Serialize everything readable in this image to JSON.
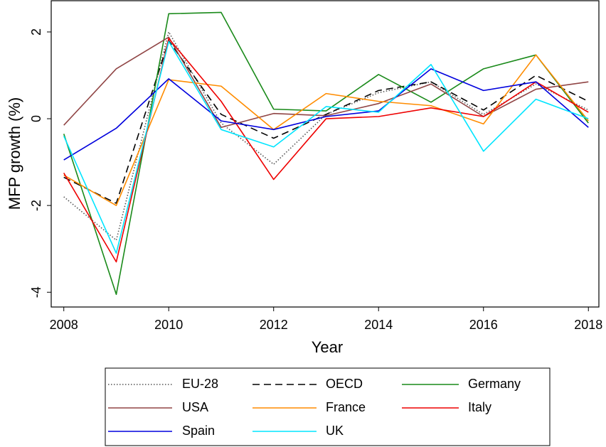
{
  "chart_data": {
    "type": "line",
    "x_label": "Year",
    "y_label": "MFP growth (%)",
    "x": [
      2008,
      2009,
      2010,
      2011,
      2012,
      2013,
      2014,
      2015,
      2016,
      2017,
      2018
    ],
    "xlim": [
      2007.76,
      2018.2
    ],
    "xticks": [
      2008,
      2010,
      2012,
      2014,
      2016,
      2018
    ],
    "ylim": [
      -4.34,
      2.72
    ],
    "yticks": [
      -4,
      -2,
      0,
      2
    ],
    "grid": false,
    "legend": "bottom",
    "series": [
      {
        "name": "EU-28",
        "color": "#555555",
        "dash": "dotted",
        "values": [
          -1.8,
          -2.8,
          2.0,
          -0.1,
          -1.05,
          0.1,
          0.6,
          0.85,
          0.1,
          0.8,
          0.2
        ]
      },
      {
        "name": "OECD",
        "color": "#000000",
        "dash": "dashed",
        "values": [
          -1.35,
          -1.95,
          1.8,
          0.1,
          -0.45,
          0.1,
          0.65,
          0.85,
          0.2,
          1.0,
          0.4
        ]
      },
      {
        "name": "Germany",
        "color": "#1a8a1a",
        "dash": "solid",
        "values": [
          -0.35,
          -4.05,
          2.42,
          2.45,
          0.22,
          0.18,
          1.02,
          0.38,
          1.15,
          1.47,
          -0.1
        ]
      },
      {
        "name": "USA",
        "color": "#904545",
        "dash": "solid",
        "values": [
          -0.15,
          1.15,
          1.88,
          -0.2,
          0.12,
          0.07,
          0.35,
          0.8,
          0.05,
          0.68,
          0.85
        ]
      },
      {
        "name": "France",
        "color": "#ff8c00",
        "dash": "solid",
        "values": [
          -1.3,
          -2.0,
          0.9,
          0.75,
          -0.25,
          0.58,
          0.4,
          0.3,
          -0.12,
          1.47,
          -0.05
        ]
      },
      {
        "name": "Italy",
        "color": "#ee0000",
        "dash": "solid",
        "values": [
          -1.25,
          -3.3,
          1.85,
          0.4,
          -1.4,
          0.0,
          0.05,
          0.25,
          0.05,
          0.85,
          0.15
        ]
      },
      {
        "name": "Spain",
        "color": "#0000dd",
        "dash": "solid",
        "values": [
          -0.95,
          -0.22,
          0.92,
          -0.05,
          -0.25,
          0.05,
          0.18,
          1.15,
          0.65,
          0.85,
          -0.2
        ]
      },
      {
        "name": "UK",
        "color": "#00e5ff",
        "dash": "solid",
        "values": [
          -0.4,
          -3.1,
          1.78,
          -0.25,
          -0.65,
          0.28,
          0.15,
          1.25,
          -0.75,
          0.45,
          0.0
        ]
      }
    ]
  }
}
